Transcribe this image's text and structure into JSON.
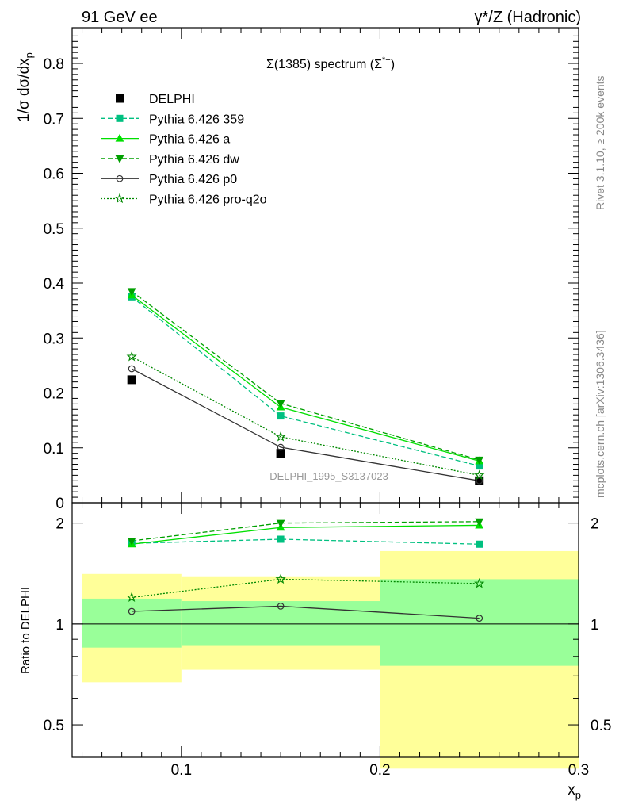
{
  "header": {
    "left": "91 GeV ee",
    "right": "γ*/Z (Hadronic)"
  },
  "side_labels": {
    "rivet": "Rivet 3.1.10, ≥ 200k events",
    "mcplots": "mcplots.cern.ch [arXiv:1306.3436]"
  },
  "chart_data": [
    {
      "type": "line",
      "title": "Σ(1385) spectrum (Σ*+)",
      "ylabel": "1/σ dσ/dx_p",
      "xlabel": "x_p",
      "watermark": "DELPHI_1995_S3137023",
      "xlim": [
        0.045,
        0.3
      ],
      "ylim": [
        0,
        0.865
      ],
      "y_ticks": [
        0.1,
        0.2,
        0.3,
        0.4,
        0.5,
        0.6,
        0.7,
        0.8
      ],
      "y_tick_labels": [
        "0.1",
        "0.2",
        "0.3",
        "0.4",
        "0.5",
        "0.6",
        "0.7",
        "0.8"
      ],
      "y_zero_label": "0",
      "x": [
        0.075,
        0.15,
        0.25
      ],
      "legend_position": "top-left",
      "data": {
        "name": "DELPHI",
        "x": [
          0.075,
          0.15,
          0.25
        ],
        "y": [
          0.224,
          0.09,
          0.04
        ],
        "bins": [
          [
            0.05,
            0.1
          ],
          [
            0.1,
            0.2
          ],
          [
            0.2,
            0.3
          ]
        ],
        "color": "#000000"
      },
      "series": [
        {
          "name": "Pythia 6.426 359",
          "values": [
            0.375,
            0.158,
            0.067
          ],
          "color": "#00c080",
          "dash": "6,3",
          "marker": "square"
        },
        {
          "name": "Pythia 6.426 a",
          "values": [
            0.378,
            0.174,
            0.076
          ],
          "color": "#00e000",
          "dash": "",
          "marker": "triangle-up"
        },
        {
          "name": "Pythia 6.426 dw",
          "values": [
            0.385,
            0.181,
            0.078
          ],
          "color": "#00a000",
          "dash": "6,3",
          "marker": "triangle-down"
        },
        {
          "name": "Pythia 6.426 p0",
          "values": [
            0.244,
            0.101,
            0.04
          ],
          "color": "#333333",
          "dash": "",
          "marker": "circle"
        },
        {
          "name": "Pythia 6.426 pro-q2o",
          "values": [
            0.266,
            0.12,
            0.05
          ],
          "color": "#008800",
          "dash": "2,2",
          "marker": "star"
        }
      ]
    },
    {
      "type": "line",
      "title": "",
      "ylabel": "Ratio to DELPHI",
      "xlabel": "x_p",
      "xlim": [
        0.045,
        0.3
      ],
      "ylim": [
        0.4,
        2.3
      ],
      "log_y": true,
      "y_ticks": [
        0.5,
        1,
        2
      ],
      "y_tick_labels": [
        "0.5",
        "1",
        "2"
      ],
      "x_ticks": [
        0.1,
        0.2,
        0.3
      ],
      "x_tick_labels": [
        "0.1",
        "0.2",
        "0.3"
      ],
      "x": [
        0.075,
        0.15,
        0.25
      ],
      "bands": [
        {
          "x": [
            0.05,
            0.1
          ],
          "stat": [
            0.85,
            1.19
          ],
          "total": [
            0.67,
            1.41
          ]
        },
        {
          "x": [
            0.1,
            0.2
          ],
          "stat": [
            0.86,
            1.17
          ],
          "total": [
            0.73,
            1.38
          ]
        },
        {
          "x": [
            0.2,
            0.3
          ],
          "stat": [
            0.75,
            1.36
          ],
          "total": [
            0.37,
            1.65
          ]
        }
      ],
      "band_colors": {
        "stat": "#99ff99",
        "total": "#ffff99"
      },
      "series": [
        {
          "name": "Pythia 6.426 359",
          "values": [
            1.74,
            1.79,
            1.73
          ]
        },
        {
          "name": "Pythia 6.426 a",
          "values": [
            1.73,
            1.94,
            1.97
          ]
        },
        {
          "name": "Pythia 6.426 dw",
          "values": [
            1.77,
            2.0,
            2.02
          ]
        },
        {
          "name": "Pythia 6.426 p0",
          "values": [
            1.09,
            1.13,
            1.04
          ]
        },
        {
          "name": "Pythia 6.426 pro-q2o",
          "values": [
            1.2,
            1.36,
            1.32
          ]
        }
      ]
    }
  ]
}
